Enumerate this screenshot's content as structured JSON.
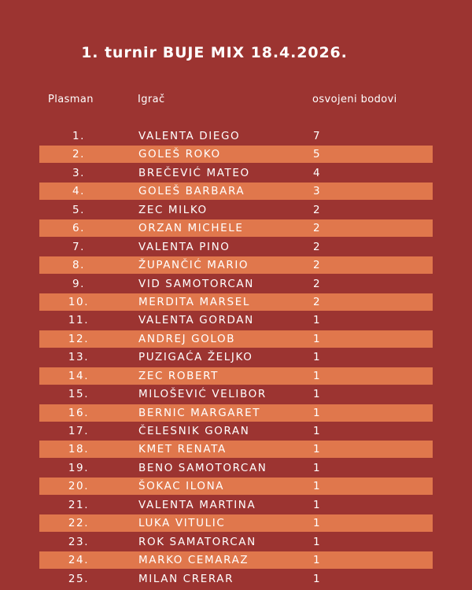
{
  "title": {
    "prefix": "1. turnir",
    "rest": "BUJE MIX 18.4.2026."
  },
  "headers": {
    "rank": "Plasman",
    "player": "Igrač",
    "points": "osvojeni bodovi"
  },
  "colors": {
    "background": "#9c3431",
    "stripe": "#e0774c",
    "text": "#ffffff"
  },
  "rows": [
    {
      "rank": "1.",
      "player": "VALENTA DIEGO",
      "points": "7"
    },
    {
      "rank": "2.",
      "player": "GOLEŠ ROKO",
      "points": "5"
    },
    {
      "rank": "3.",
      "player": "BREČEVIĆ MATEO",
      "points": "4"
    },
    {
      "rank": "4.",
      "player": "GOLEŠ BARBARA",
      "points": "3"
    },
    {
      "rank": "5.",
      "player": "ZEC MILKO",
      "points": "2"
    },
    {
      "rank": "6.",
      "player": "ORZAN MICHELE",
      "points": "2"
    },
    {
      "rank": "7.",
      "player": "VALENTA PINO",
      "points": "2"
    },
    {
      "rank": "8.",
      "player": "ŽUPANČIĆ MARIO",
      "points": "2"
    },
    {
      "rank": "9.",
      "player": "VID SAMOTORCAN",
      "points": "2"
    },
    {
      "rank": "10.",
      "player": "MERDITA MARSEL",
      "points": "2"
    },
    {
      "rank": "11.",
      "player": "VALENTA GORDAN",
      "points": "1"
    },
    {
      "rank": "12.",
      "player": "ANDREJ GOLOB",
      "points": "1"
    },
    {
      "rank": "13.",
      "player": "PUZIGAĆA ŽELJKO",
      "points": "1"
    },
    {
      "rank": "14.",
      "player": "ZEC ROBERT",
      "points": "1"
    },
    {
      "rank": "15.",
      "player": "MILOŠEVIĆ VELIBOR",
      "points": "1"
    },
    {
      "rank": "16.",
      "player": "BERNIC MARGARET",
      "points": "1"
    },
    {
      "rank": "17.",
      "player": "ČELESNIK GORAN",
      "points": "1"
    },
    {
      "rank": "18.",
      "player": "KMET RENATA",
      "points": "1"
    },
    {
      "rank": "19.",
      "player": "BENO SAMOTORCAN",
      "points": "1"
    },
    {
      "rank": "20.",
      "player": "ŠOKAC ILONA",
      "points": "1"
    },
    {
      "rank": "21.",
      "player": "VALENTA MARTINA",
      "points": "1"
    },
    {
      "rank": "22.",
      "player": "LUKA VITULIC",
      "points": "1"
    },
    {
      "rank": "23.",
      "player": "ROK SAMATORCAN",
      "points": "1"
    },
    {
      "rank": "24.",
      "player": "MARKO CEMARAZ",
      "points": "1"
    },
    {
      "rank": "25.",
      "player": "MILAN CRERAR",
      "points": "1"
    }
  ]
}
